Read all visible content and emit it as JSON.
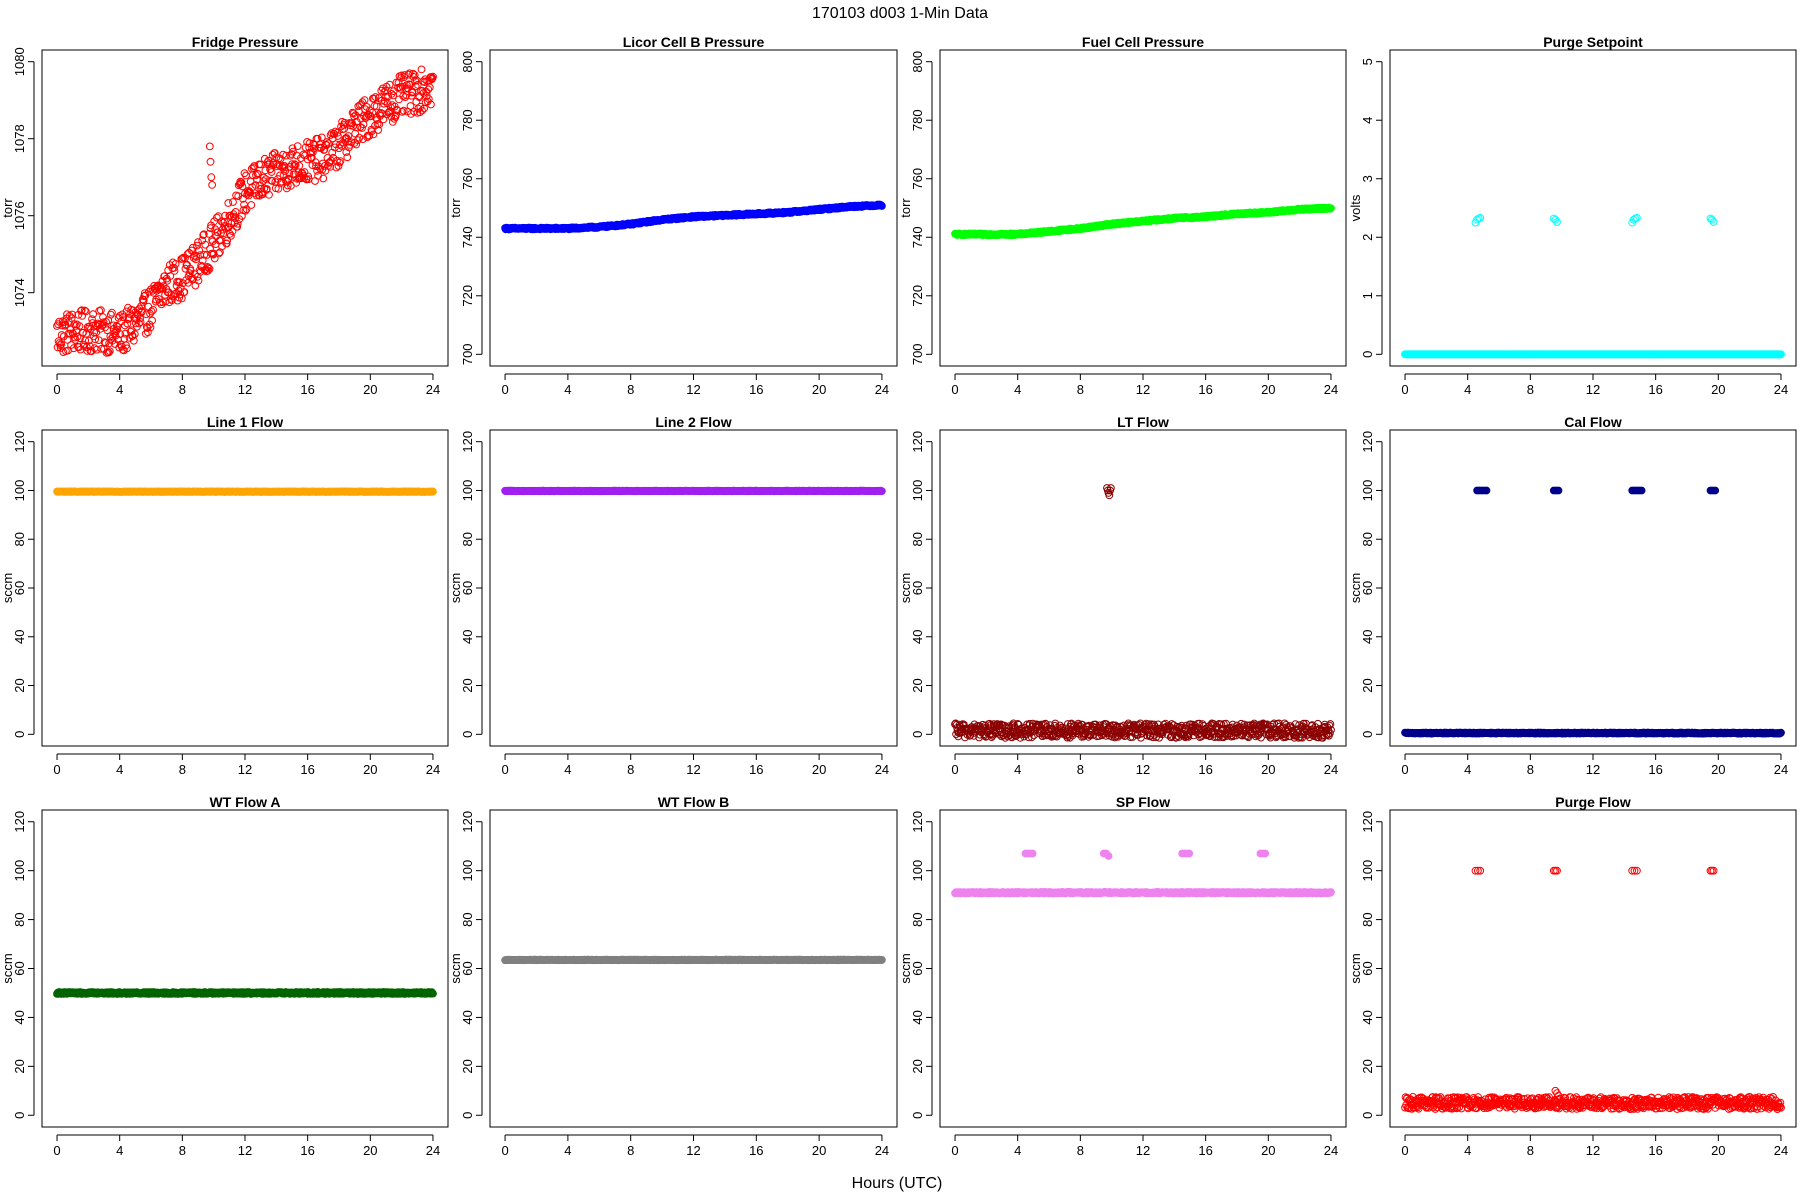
{
  "figure": {
    "title": "170103    d003    1-Min Data",
    "xlabel": "Hours (UTC)"
  },
  "chart_data": [
    {
      "type": "scatter",
      "title": "Fridge Pressure",
      "xlabel": "",
      "ylabel": "torr",
      "xlim": [
        0,
        24
      ],
      "ylim": [
        1072.4,
        1080
      ],
      "xticks": [
        0,
        4,
        8,
        12,
        16,
        20,
        24
      ],
      "yticks": [
        1074,
        1076,
        1078,
        1080
      ],
      "color": "#ff0000",
      "marker": "open-circle",
      "series": [
        {
          "x": [
            0,
            1,
            2,
            3,
            4,
            5,
            6,
            7,
            8,
            9,
            10,
            11,
            12,
            13,
            14,
            15,
            16,
            17,
            18,
            19,
            20,
            21,
            22,
            23,
            24
          ],
          "values": [
            1072.9,
            1073.0,
            1073.0,
            1073.0,
            1072.9,
            1073.2,
            1073.6,
            1074.2,
            1074.4,
            1074.8,
            1075.3,
            1075.9,
            1076.6,
            1076.9,
            1077.1,
            1077.3,
            1077.4,
            1077.5,
            1077.8,
            1078.3,
            1078.6,
            1078.9,
            1079.1,
            1079.2,
            1079.4
          ],
          "noise": 0.55
        }
      ],
      "outliers": [
        {
          "x": [
            9.75,
            9.8,
            9.85,
            9.9
          ],
          "values": [
            1077.8,
            1077.4,
            1077.0,
            1076.8
          ]
        }
      ]
    },
    {
      "type": "scatter",
      "title": "Licor Cell B Pressure",
      "xlabel": "",
      "ylabel": "torr",
      "xlim": [
        0,
        24
      ],
      "ylim": [
        700,
        800
      ],
      "xticks": [
        0,
        4,
        8,
        12,
        16,
        20,
        24
      ],
      "yticks": [
        700,
        720,
        740,
        760,
        780,
        800
      ],
      "color": "#0000ff",
      "marker": "filled-circle",
      "series": [
        {
          "x": [
            0,
            2,
            4,
            6,
            8,
            10,
            12,
            14,
            16,
            18,
            20,
            22,
            24
          ],
          "values": [
            743,
            743,
            743,
            743.5,
            744.5,
            746,
            747,
            747.5,
            748,
            748.5,
            749.5,
            750.5,
            751
          ],
          "noise": 0.3
        }
      ]
    },
    {
      "type": "scatter",
      "title": "Fuel Cell Pressure",
      "xlabel": "",
      "ylabel": "torr",
      "xlim": [
        0,
        24
      ],
      "ylim": [
        700,
        800
      ],
      "xticks": [
        0,
        4,
        8,
        12,
        16,
        20,
        24
      ],
      "yticks": [
        700,
        720,
        740,
        760,
        780,
        800
      ],
      "color": "#00ff00",
      "marker": "filled-circle",
      "series": [
        {
          "x": [
            0,
            2,
            4,
            6,
            8,
            10,
            12,
            14,
            16,
            18,
            20,
            22,
            24
          ],
          "values": [
            741,
            741,
            741,
            742,
            743,
            744.5,
            745.5,
            746.5,
            747,
            748,
            748.5,
            749.5,
            750
          ],
          "noise": 0.3
        }
      ]
    },
    {
      "type": "scatter",
      "title": "Purge Setpoint",
      "xlabel": "",
      "ylabel": "volts",
      "xlim": [
        0,
        24
      ],
      "ylim": [
        0,
        5
      ],
      "xticks": [
        0,
        4,
        8,
        12,
        16,
        20,
        24
      ],
      "yticks": [
        0,
        1,
        2,
        3,
        4,
        5
      ],
      "color": "#00ffff",
      "marker": "open-circle",
      "series": [
        {
          "x": [
            0,
            24
          ],
          "values": [
            0,
            0
          ],
          "noise": 0
        }
      ],
      "outliers": [
        {
          "x": [
            4.5,
            4.6,
            4.7,
            4.8
          ],
          "values": [
            2.25,
            2.3,
            2.32,
            2.33
          ]
        },
        {
          "x": [
            9.5,
            9.6,
            9.7
          ],
          "values": [
            2.32,
            2.3,
            2.26
          ]
        },
        {
          "x": [
            14.5,
            14.6,
            14.7,
            14.8
          ],
          "values": [
            2.25,
            2.3,
            2.32,
            2.33
          ]
        },
        {
          "x": [
            19.5,
            19.6,
            19.7
          ],
          "values": [
            2.32,
            2.3,
            2.26
          ]
        }
      ]
    },
    {
      "type": "scatter",
      "title": "Line 1 Flow",
      "xlabel": "",
      "ylabel": "sccm",
      "xlim": [
        0,
        24
      ],
      "ylim": [
        0,
        120
      ],
      "xticks": [
        0,
        4,
        8,
        12,
        16,
        20,
        24
      ],
      "yticks": [
        0,
        20,
        40,
        60,
        80,
        100,
        120
      ],
      "color": "#ffa500",
      "marker": "filled-circle",
      "series": [
        {
          "x": [
            0,
            24
          ],
          "values": [
            99.5,
            99.5
          ],
          "noise": 0.1
        }
      ]
    },
    {
      "type": "scatter",
      "title": "Line 2 Flow",
      "xlabel": "",
      "ylabel": "sccm",
      "xlim": [
        0,
        24
      ],
      "ylim": [
        0,
        120
      ],
      "xticks": [
        0,
        4,
        8,
        12,
        16,
        20,
        24
      ],
      "yticks": [
        0,
        20,
        40,
        60,
        80,
        100,
        120
      ],
      "color": "#a020f0",
      "marker": "filled-circle",
      "series": [
        {
          "x": [
            0,
            24
          ],
          "values": [
            99.8,
            99.8
          ],
          "noise": 0.1
        }
      ]
    },
    {
      "type": "scatter",
      "title": "LT Flow",
      "xlabel": "",
      "ylabel": "sccm",
      "xlim": [
        0,
        24
      ],
      "ylim": [
        0,
        120
      ],
      "xticks": [
        0,
        4,
        8,
        12,
        16,
        20,
        24
      ],
      "yticks": [
        0,
        20,
        40,
        60,
        80,
        100,
        120
      ],
      "color": "#8b0000",
      "marker": "open-circle",
      "series": [
        {
          "x": [
            0,
            24
          ],
          "values": [
            1.5,
            1.5
          ],
          "noise": 3
        }
      ],
      "outliers": [
        {
          "x": [
            9.7,
            9.75,
            9.8,
            9.85,
            9.9,
            9.95
          ],
          "values": [
            101,
            100,
            99,
            98,
            100,
            101
          ]
        }
      ]
    },
    {
      "type": "scatter",
      "title": "Cal Flow",
      "xlabel": "",
      "ylabel": "sccm",
      "xlim": [
        0,
        24
      ],
      "ylim": [
        0,
        120
      ],
      "xticks": [
        0,
        4,
        8,
        12,
        16,
        20,
        24
      ],
      "yticks": [
        0,
        20,
        40,
        60,
        80,
        100,
        120
      ],
      "color": "#00008b",
      "marker": "filled-circle",
      "series": [
        {
          "x": [
            0,
            24
          ],
          "values": [
            0.5,
            0.5
          ],
          "noise": 0.2
        }
      ],
      "outliers": [
        {
          "x": [
            4.6,
            4.75,
            4.9,
            5.05,
            5.2
          ],
          "values": [
            100,
            100,
            100,
            100,
            100
          ]
        },
        {
          "x": [
            9.5,
            9.65,
            9.8
          ],
          "values": [
            100,
            100,
            100
          ]
        },
        {
          "x": [
            14.5,
            14.65,
            14.8,
            14.95,
            15.1
          ],
          "values": [
            100,
            100,
            100,
            100,
            100
          ]
        },
        {
          "x": [
            19.5,
            19.65,
            19.8
          ],
          "values": [
            100,
            100,
            100
          ]
        }
      ]
    },
    {
      "type": "scatter",
      "title": "WT Flow A",
      "xlabel": "",
      "ylabel": "sccm",
      "xlim": [
        0,
        24
      ],
      "ylim": [
        0,
        120
      ],
      "xticks": [
        0,
        4,
        8,
        12,
        16,
        20,
        24
      ],
      "yticks": [
        0,
        20,
        40,
        60,
        80,
        100,
        120
      ],
      "color": "#006400",
      "marker": "filled-circle",
      "series": [
        {
          "x": [
            0,
            24
          ],
          "values": [
            50,
            50
          ],
          "noise": 0.4
        }
      ]
    },
    {
      "type": "scatter",
      "title": "WT Flow B",
      "xlabel": "",
      "ylabel": "sccm",
      "xlim": [
        0,
        24
      ],
      "ylim": [
        0,
        120
      ],
      "xticks": [
        0,
        4,
        8,
        12,
        16,
        20,
        24
      ],
      "yticks": [
        0,
        20,
        40,
        60,
        80,
        100,
        120
      ],
      "color": "#808080",
      "marker": "filled-circle",
      "series": [
        {
          "x": [
            0,
            24
          ],
          "values": [
            63.5,
            63.5
          ],
          "noise": 0.1
        }
      ]
    },
    {
      "type": "scatter",
      "title": "SP Flow",
      "xlabel": "",
      "ylabel": "sccm",
      "xlim": [
        0,
        24
      ],
      "ylim": [
        0,
        120
      ],
      "xticks": [
        0,
        4,
        8,
        12,
        16,
        20,
        24
      ],
      "yticks": [
        0,
        20,
        40,
        60,
        80,
        100,
        120
      ],
      "color": "#ee82ee",
      "marker": "filled-circle",
      "series": [
        {
          "x": [
            0,
            24
          ],
          "values": [
            91,
            91
          ],
          "noise": 0.3
        }
      ],
      "outliers": [
        {
          "x": [
            4.5,
            4.65,
            4.8,
            4.95
          ],
          "values": [
            107,
            107,
            107,
            107
          ]
        },
        {
          "x": [
            9.5,
            9.65,
            9.8
          ],
          "values": [
            107,
            107,
            106
          ]
        },
        {
          "x": [
            14.5,
            14.65,
            14.8,
            14.95
          ],
          "values": [
            107,
            107,
            107,
            107
          ]
        },
        {
          "x": [
            19.5,
            19.65,
            19.8
          ],
          "values": [
            107,
            107,
            107
          ]
        }
      ]
    },
    {
      "type": "scatter",
      "title": "Purge Flow",
      "xlabel": "",
      "ylabel": "sccm",
      "xlim": [
        0,
        24
      ],
      "ylim": [
        0,
        120
      ],
      "xticks": [
        0,
        4,
        8,
        12,
        16,
        20,
        24
      ],
      "yticks": [
        0,
        20,
        40,
        60,
        80,
        100,
        120
      ],
      "color": "#ff0000",
      "marker": "open-circle",
      "series": [
        {
          "x": [
            0,
            24
          ],
          "values": [
            5,
            5
          ],
          "noise": 2.5
        }
      ],
      "outliers": [
        {
          "x": [
            4.5,
            4.65,
            4.8
          ],
          "values": [
            100,
            100,
            100
          ]
        },
        {
          "x": [
            9.5,
            9.6,
            9.7
          ],
          "values": [
            100,
            100,
            100
          ]
        },
        {
          "x": [
            14.5,
            14.65,
            14.8
          ],
          "values": [
            100,
            100,
            100
          ]
        },
        {
          "x": [
            19.5,
            19.6,
            19.7
          ],
          "values": [
            100,
            100,
            100
          ]
        },
        {
          "x": [
            9.6,
            9.7,
            9.8
          ],
          "values": [
            10,
            9,
            8
          ]
        }
      ]
    }
  ]
}
